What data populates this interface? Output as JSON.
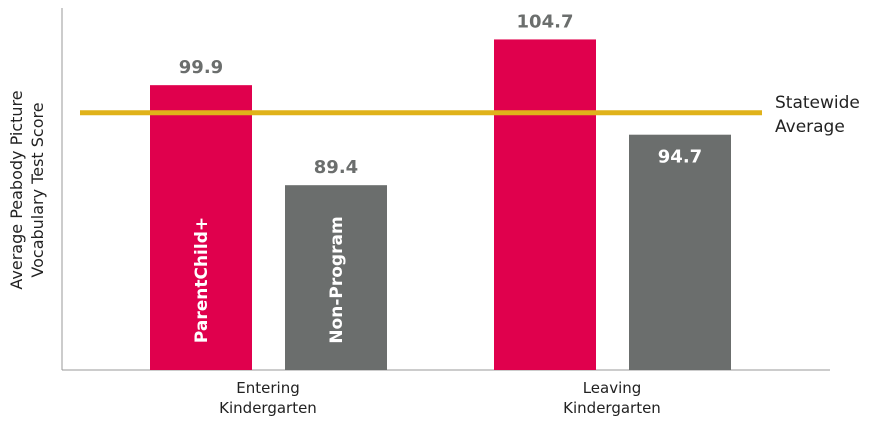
{
  "chart_data": {
    "type": "bar",
    "categories": [
      "Entering Kindergarten",
      "Leaving Kindergarten"
    ],
    "category_lines": [
      [
        "Entering",
        "Kindergarten"
      ],
      [
        "Leaving",
        "Kindergarten"
      ]
    ],
    "series": [
      {
        "name": "ParentChild+",
        "values": [
          99.9,
          104.7
        ],
        "color": "#e0004d"
      },
      {
        "name": "Non-Program",
        "values": [
          89.4,
          94.7
        ],
        "color": "#6b6e6d"
      }
    ],
    "value_labels": [
      [
        "99.9",
        "104.7"
      ],
      [
        "89.4",
        "94.7"
      ]
    ],
    "ylabel_lines": [
      "Average Peabody Picture",
      "Vocabulary Test Score"
    ],
    "reference_line": {
      "value": 97,
      "label_lines": [
        "Statewide",
        "Average"
      ],
      "color": "#e0b21a"
    },
    "ylim": [
      70,
      108
    ],
    "grid": false,
    "legend": "none"
  }
}
